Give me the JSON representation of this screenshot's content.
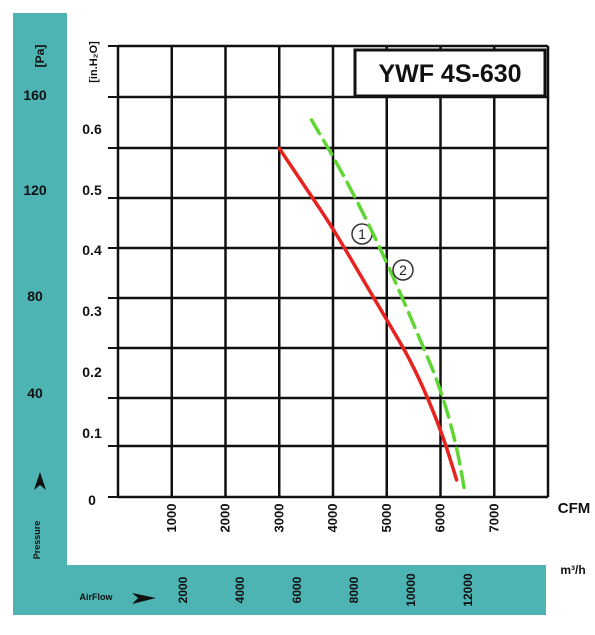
{
  "chart_data": {
    "type": "line",
    "title": "YWF 4S-630",
    "pa_axis": {
      "unit_label": "[Pa]",
      "name": "Pressure",
      "ticks": [
        "160",
        "120",
        "80",
        "40"
      ]
    },
    "inh2o_axis": {
      "unit_label": "[in.H₂O]",
      "ticks": [
        "0.6",
        "0.5",
        "0.4",
        "0.3",
        "0.2",
        "0.1",
        "0"
      ],
      "ylim": [
        0,
        0.7
      ]
    },
    "cfm_axis": {
      "unit_label": "CFM",
      "ticks": [
        "1000",
        "2000",
        "3000",
        "4000",
        "5000",
        "6000",
        "7000"
      ],
      "xlim": [
        0,
        8000
      ]
    },
    "m3h_axis": {
      "unit_label": "m³/h",
      "name": "AirFlow",
      "ticks": [
        "2000",
        "4000",
        "6000",
        "8000",
        "10000",
        "12000"
      ]
    },
    "series": [
      {
        "name": "1",
        "color": "#e8231f",
        "style": "solid",
        "points": [
          [
            3000,
            0.61
          ],
          [
            3500,
            0.54
          ],
          [
            4000,
            0.47
          ],
          [
            4500,
            0.39
          ],
          [
            5000,
            0.31
          ],
          [
            5500,
            0.23
          ],
          [
            6000,
            0.12
          ],
          [
            6300,
            0.03
          ]
        ]
      },
      {
        "name": "2",
        "color": "#5fd633",
        "style": "dashed",
        "points": [
          [
            3600,
            0.66
          ],
          [
            4100,
            0.58
          ],
          [
            4600,
            0.49
          ],
          [
            5100,
            0.39
          ],
          [
            5600,
            0.28
          ],
          [
            6000,
            0.19
          ],
          [
            6300,
            0.09
          ],
          [
            6450,
            0.01
          ]
        ]
      }
    ],
    "grid": true
  },
  "colors": {
    "band": "#4db3b3",
    "grid": "#111111"
  }
}
